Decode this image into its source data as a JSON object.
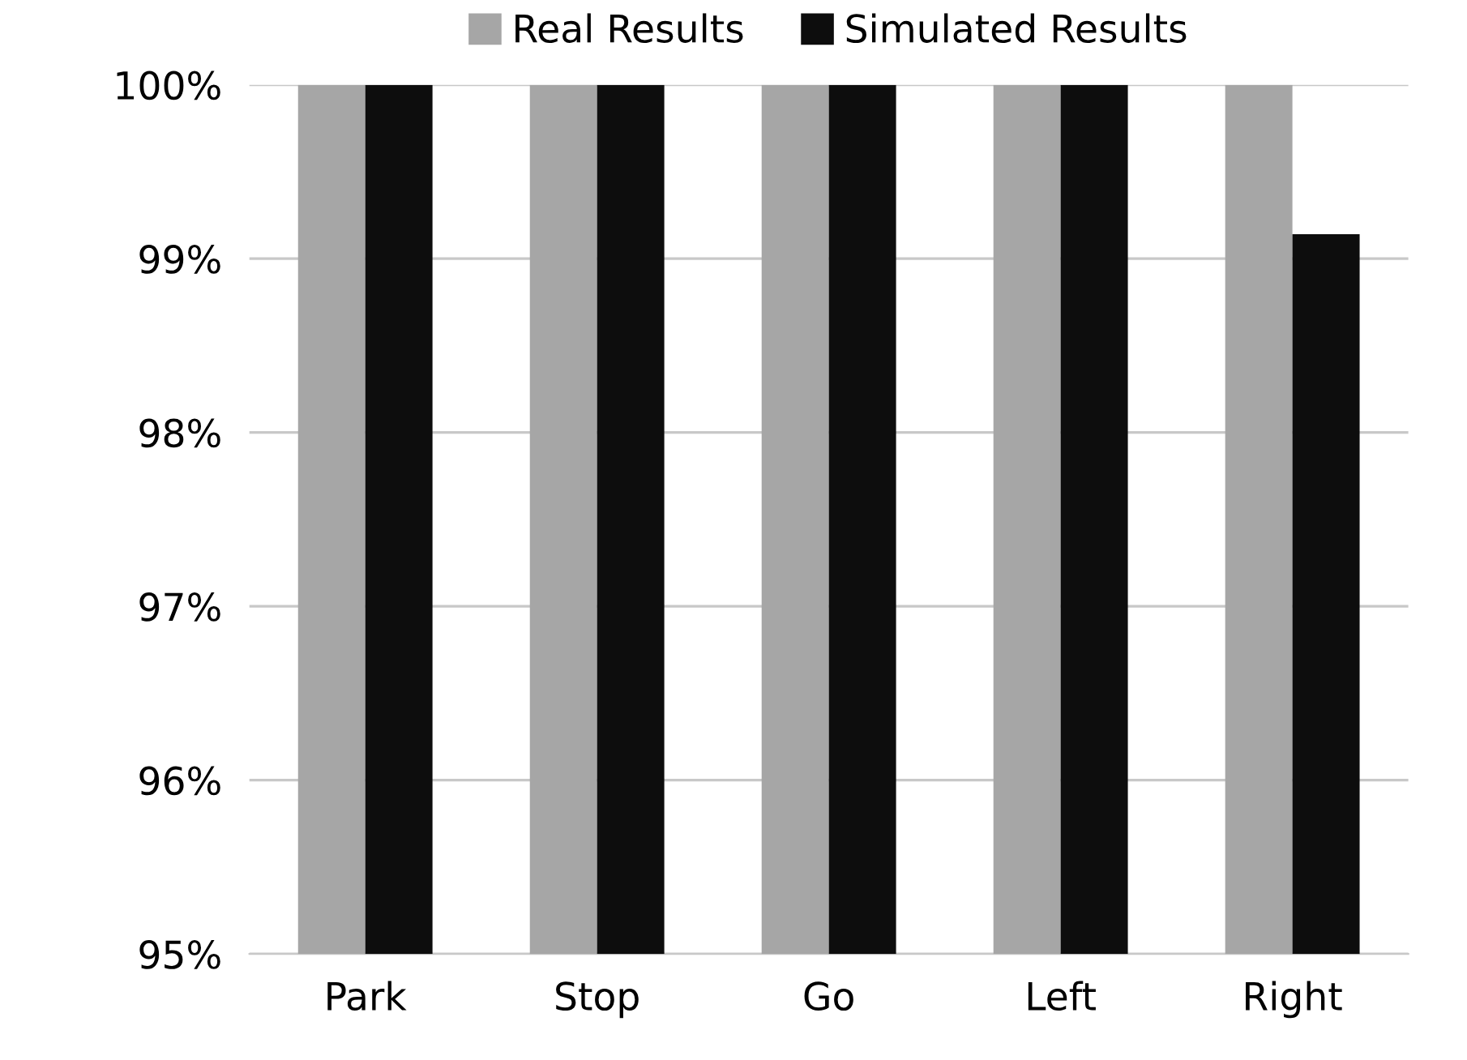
{
  "chart_data": {
    "type": "bar",
    "categories": [
      "Park",
      "Stop",
      "Go",
      "Left",
      "Right"
    ],
    "series": [
      {
        "name": "Real Results",
        "color": "#a6a6a6",
        "values": [
          100,
          100,
          100,
          100,
          100
        ]
      },
      {
        "name": "Simulated Results",
        "color": "#0d0d0d",
        "values": [
          100,
          100,
          100,
          100,
          99.14
        ]
      }
    ],
    "ylim": [
      95,
      100
    ],
    "yticks": [
      {
        "value": 95,
        "label": "95%"
      },
      {
        "value": 96,
        "label": "96%"
      },
      {
        "value": 97,
        "label": "97%"
      },
      {
        "value": 98,
        "label": "98%"
      },
      {
        "value": 99,
        "label": "99%"
      },
      {
        "value": 100,
        "label": "100%"
      }
    ],
    "grid": "y",
    "legend": "top"
  }
}
